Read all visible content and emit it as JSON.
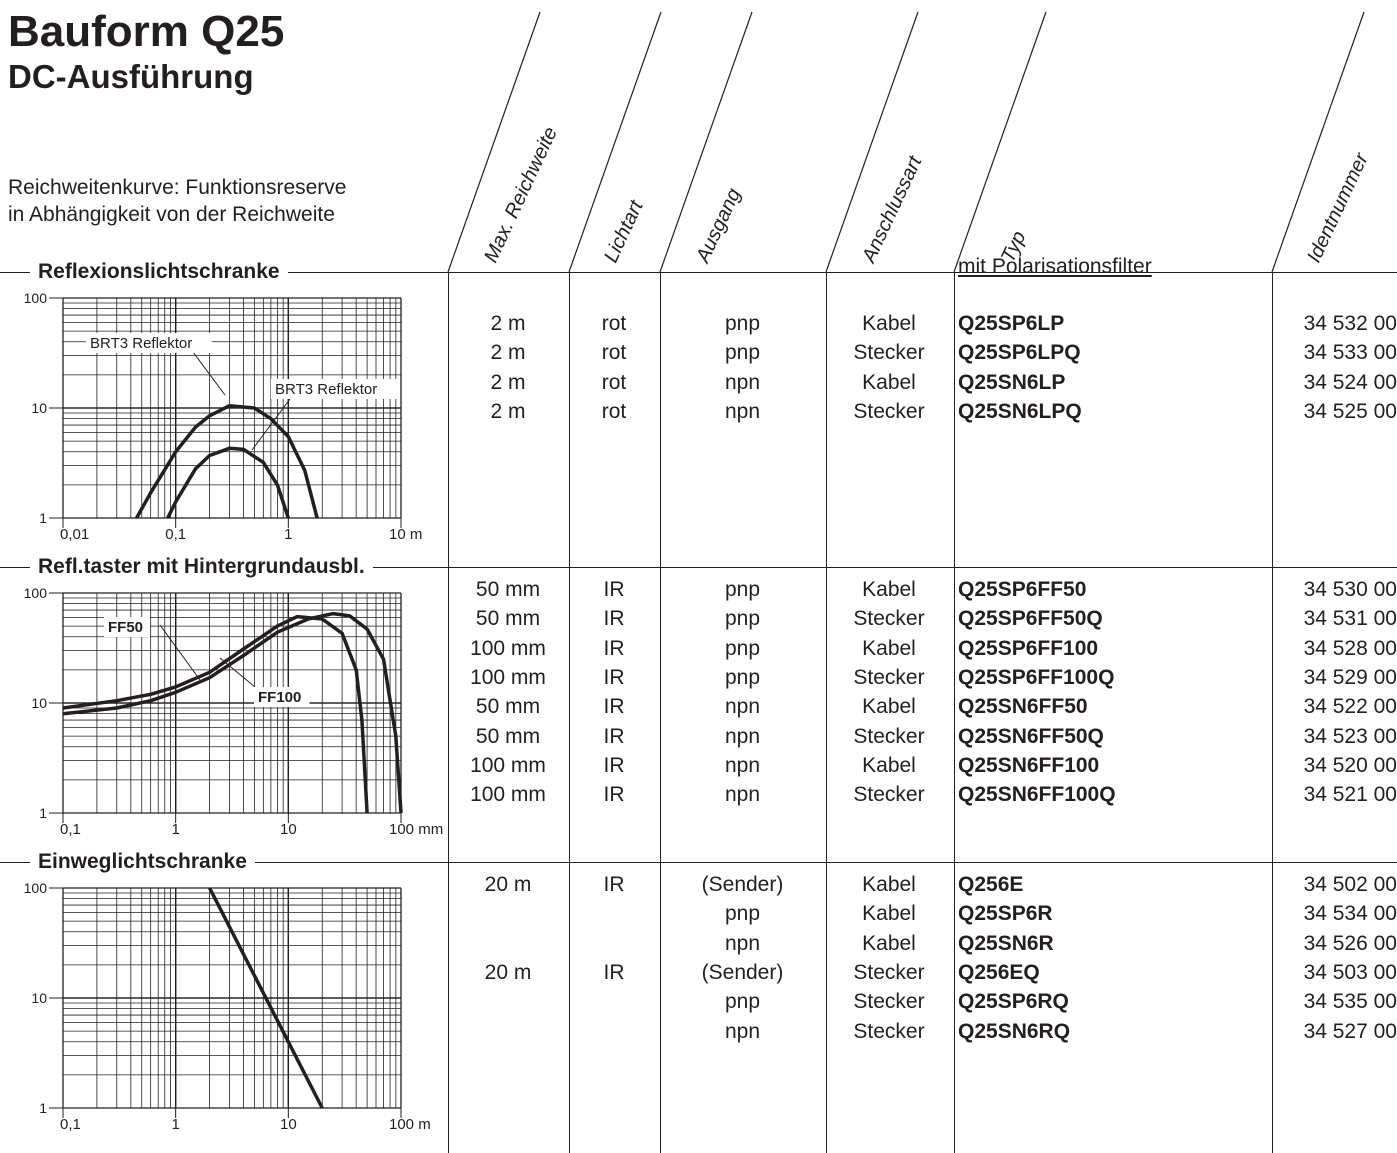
{
  "title": "Bauform Q25",
  "subtitle": "DC-Ausführung",
  "intro_line1": "Reichweitenkurve: Funktionsreserve",
  "intro_line2": "in Abhängigkeit von der Reichweite",
  "columns": [
    "Max. Reichweite",
    "Lichtart",
    "Ausgang",
    "Anschlussart",
    "Typ",
    "Identnummer"
  ],
  "sections": [
    {
      "title": "Reflexionslichtschranke",
      "note": "mit Polarisationsfilter",
      "rows": [
        {
          "reach": "2 m",
          "light": "rot",
          "output": "pnp",
          "conn": "Kabel",
          "typ": "Q25SP6LP",
          "id": "34 532 00"
        },
        {
          "reach": "2 m",
          "light": "rot",
          "output": "pnp",
          "conn": "Stecker",
          "typ": "Q25SP6LPQ",
          "id": "34 533 00"
        },
        {
          "reach": "2 m",
          "light": "rot",
          "output": "npn",
          "conn": "Kabel",
          "typ": "Q25SN6LP",
          "id": "34 524 00"
        },
        {
          "reach": "2 m",
          "light": "rot",
          "output": "npn",
          "conn": "Stecker",
          "typ": "Q25SN6LPQ",
          "id": "34 525 00"
        }
      ]
    },
    {
      "title": "Refl.taster mit Hintergrundausbl.",
      "rows": [
        {
          "reach": "50 mm",
          "light": "IR",
          "output": "pnp",
          "conn": "Kabel",
          "typ": "Q25SP6FF50",
          "id": "34 530 00"
        },
        {
          "reach": "50 mm",
          "light": "IR",
          "output": "pnp",
          "conn": "Stecker",
          "typ": "Q25SP6FF50Q",
          "id": "34 531 00"
        },
        {
          "reach": "100 mm",
          "light": "IR",
          "output": "pnp",
          "conn": "Kabel",
          "typ": "Q25SP6FF100",
          "id": "34 528 00"
        },
        {
          "reach": "100 mm",
          "light": "IR",
          "output": "pnp",
          "conn": "Stecker",
          "typ": "Q25SP6FF100Q",
          "id": "34 529 00"
        },
        {
          "reach": "50 mm",
          "light": "IR",
          "output": "npn",
          "conn": "Kabel",
          "typ": "Q25SN6FF50",
          "id": "34 522 00"
        },
        {
          "reach": "50 mm",
          "light": "IR",
          "output": "npn",
          "conn": "Stecker",
          "typ": "Q25SN6FF50Q",
          "id": "34 523 00"
        },
        {
          "reach": "100 mm",
          "light": "IR",
          "output": "npn",
          "conn": "Kabel",
          "typ": "Q25SN6FF100",
          "id": "34 520 00"
        },
        {
          "reach": "100 mm",
          "light": "IR",
          "output": "npn",
          "conn": "Stecker",
          "typ": "Q25SN6FF100Q",
          "id": "34 521 00"
        }
      ]
    },
    {
      "title": "Einweglichtschranke",
      "rows": [
        {
          "reach": "20 m",
          "light": "IR",
          "output": "(Sender)",
          "conn": "Kabel",
          "typ": "Q256E",
          "id": "34 502 00"
        },
        {
          "reach": "",
          "light": "",
          "output": "pnp",
          "conn": "Kabel",
          "typ": "Q25SP6R",
          "id": "34 534 00"
        },
        {
          "reach": "",
          "light": "",
          "output": "npn",
          "conn": "Kabel",
          "typ": "Q25SN6R",
          "id": "34 526 00"
        },
        {
          "reach": "20 m",
          "light": "IR",
          "output": "(Sender)",
          "conn": "Stecker",
          "typ": "Q256EQ",
          "id": "34 503 00"
        },
        {
          "reach": "",
          "light": "",
          "output": "pnp",
          "conn": "Stecker",
          "typ": "Q25SP6RQ",
          "id": "34 535 00"
        },
        {
          "reach": "",
          "light": "",
          "output": "npn",
          "conn": "Stecker",
          "typ": "Q25SN6RQ",
          "id": "34 527 00"
        }
      ]
    }
  ],
  "chart_data": [
    {
      "type": "line",
      "x_scale": "log",
      "y_scale": "log",
      "xlim": [
        0.01,
        10
      ],
      "ylim": [
        1,
        100
      ],
      "x_ticks": [
        "0,01",
        "0,1",
        "1",
        "10 m"
      ],
      "y_ticks": [
        "1",
        "10",
        "100"
      ],
      "annotations": [
        "BRT3 Reflektor",
        "BRT3 Reflektor"
      ],
      "series": [
        {
          "x": [
            0.045,
            0.06,
            0.1,
            0.15,
            0.2,
            0.3,
            0.5,
            0.7,
            1.0,
            1.4,
            1.8
          ],
          "y": [
            1,
            1.7,
            4.0,
            6.7,
            8.5,
            10.5,
            10.0,
            8.0,
            5.5,
            2.7,
            1.0
          ]
        },
        {
          "x": [
            0.085,
            0.1,
            0.15,
            0.2,
            0.3,
            0.4,
            0.6,
            0.8,
            1.0
          ],
          "y": [
            1,
            1.4,
            2.8,
            3.7,
            4.3,
            4.2,
            3.2,
            2.0,
            1.0
          ]
        }
      ]
    },
    {
      "type": "line",
      "x_scale": "log",
      "y_scale": "log",
      "xlim": [
        0.1,
        100
      ],
      "ylim": [
        1,
        100
      ],
      "x_ticks": [
        "0,1",
        "1",
        "10",
        "100 mm"
      ],
      "y_ticks": [
        "1",
        "10",
        "100"
      ],
      "annotations": [
        "FF50",
        "FF100"
      ],
      "series": [
        {
          "x": [
            0.1,
            0.3,
            0.6,
            1,
            2,
            4,
            8,
            12,
            20,
            30,
            40,
            45,
            50
          ],
          "y": [
            9,
            10.5,
            12,
            14,
            19,
            31,
            50,
            61,
            58,
            43,
            20,
            7,
            1
          ]
        },
        {
          "x": [
            0.1,
            0.3,
            0.6,
            1,
            2,
            4,
            8,
            15,
            25,
            35,
            50,
            70,
            90,
            100
          ],
          "y": [
            8,
            9,
            10.5,
            12.5,
            17,
            27,
            44,
            58,
            65,
            62,
            47,
            25,
            5,
            1
          ]
        }
      ]
    },
    {
      "type": "line",
      "x_scale": "log",
      "y_scale": "log",
      "xlim": [
        0.1,
        100
      ],
      "ylim": [
        1,
        100
      ],
      "x_ticks": [
        "0,1",
        "1",
        "10",
        "100 m"
      ],
      "y_ticks": [
        "1",
        "10",
        "100"
      ],
      "series": [
        {
          "x": [
            2,
            20
          ],
          "y": [
            100,
            1
          ]
        }
      ]
    }
  ]
}
